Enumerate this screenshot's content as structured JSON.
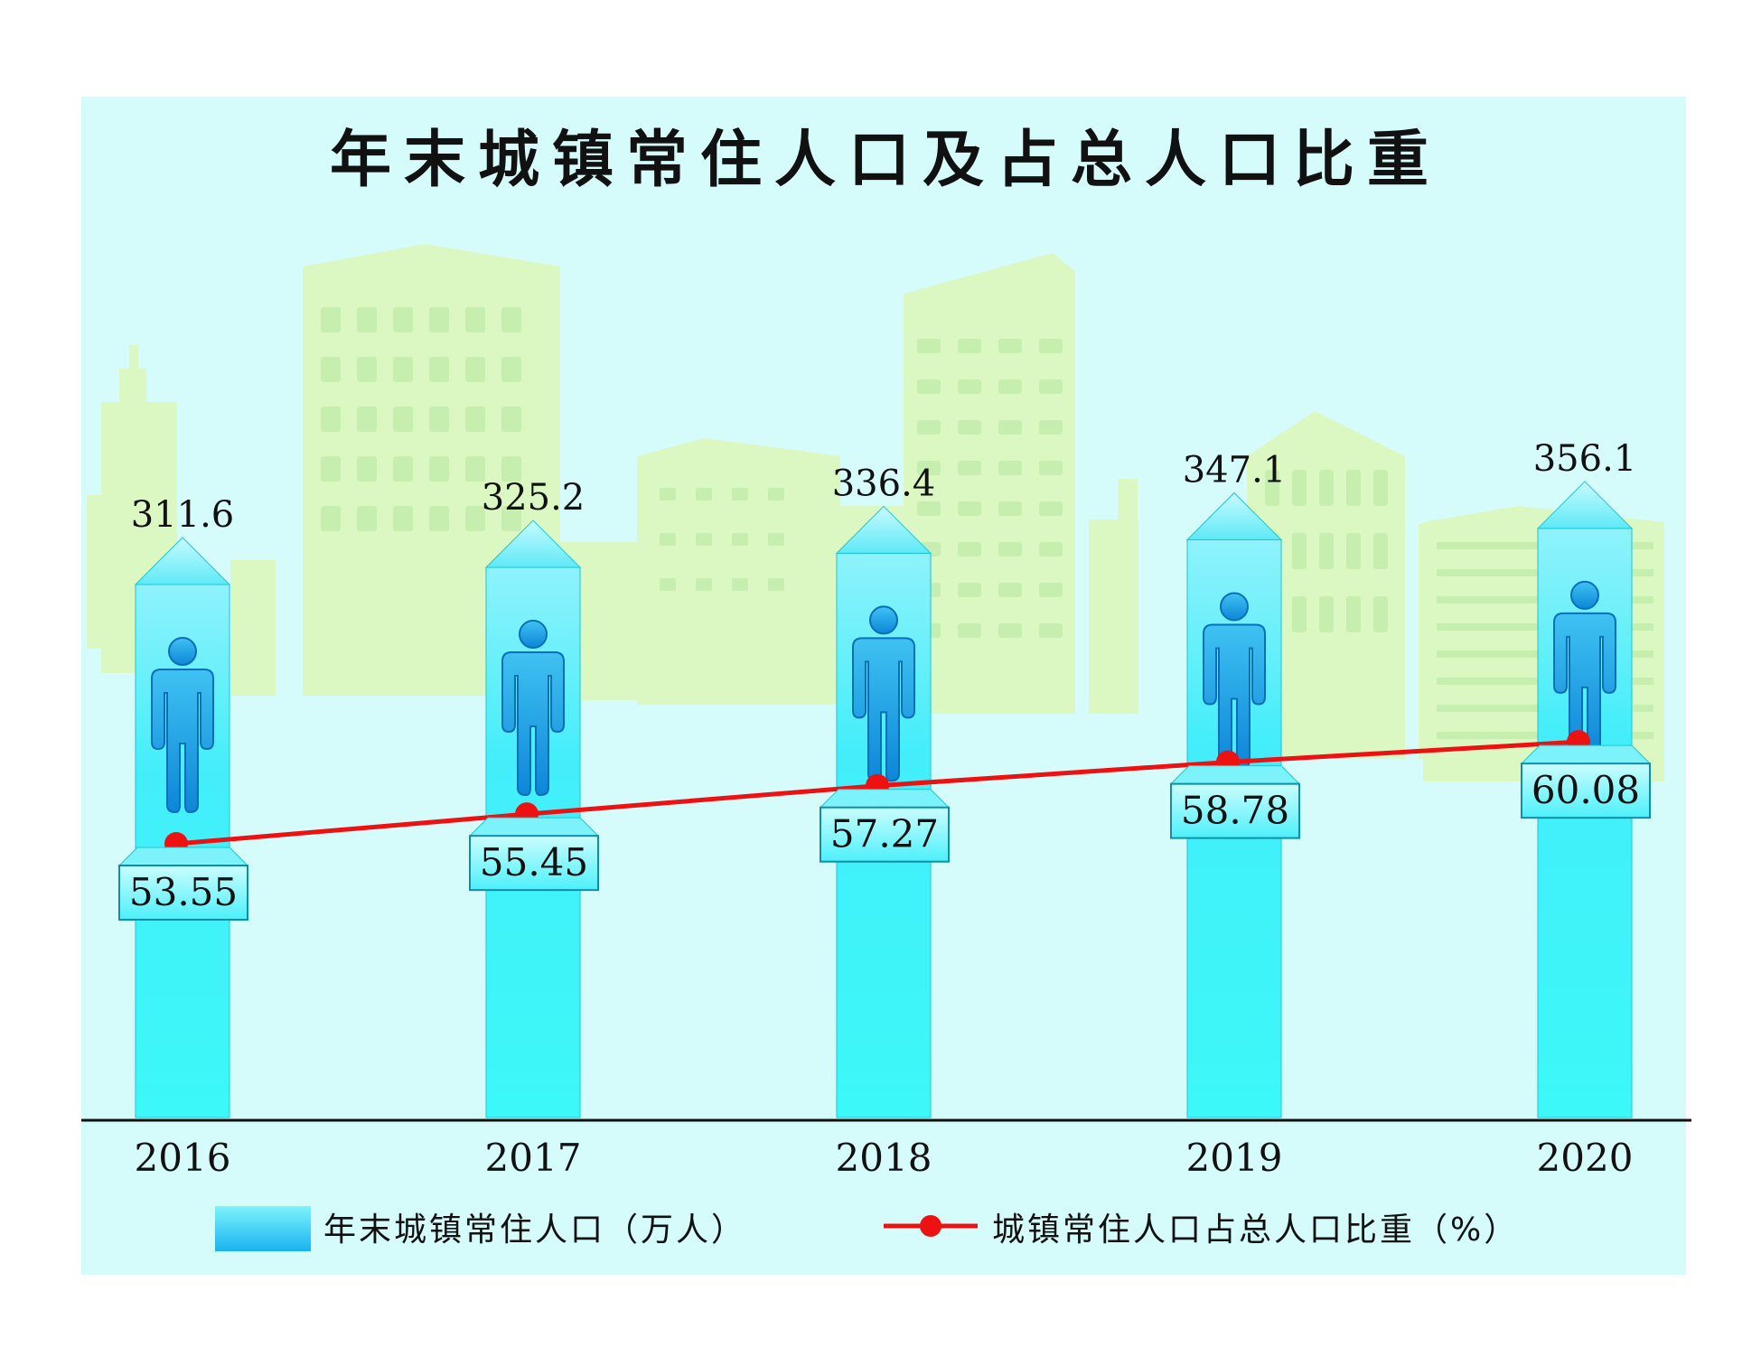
{
  "colors": {
    "panel_bg": "#d6fbfb",
    "building": "#dff9c4",
    "bar_fill": "#3ff7f9",
    "bar_edge": "#17c9dc",
    "person": "#1aa0e6",
    "line": "#ee1111",
    "axis": "#111111"
  },
  "legend": {
    "bar_label": "年末城镇常住人口（万人）",
    "line_label": "城镇常住人口占总人口比重（%）"
  },
  "chart_data": {
    "type": "bar",
    "title": "年末城镇常住人口及占总人口比重",
    "categories": [
      "2016",
      "2017",
      "2018",
      "2019",
      "2020"
    ],
    "series": [
      {
        "name": "年末城镇常住人口（万人）",
        "type": "bar",
        "values": [
          311.6,
          325.2,
          336.4,
          347.1,
          356.1
        ],
        "labels": [
          "311.6",
          "325.2",
          "336.4",
          "347.1",
          "356.1"
        ]
      },
      {
        "name": "城镇常住人口占总人口比重（%）",
        "type": "line",
        "values": [
          53.55,
          55.45,
          57.27,
          58.78,
          60.08
        ],
        "labels": [
          "53.55",
          "55.45",
          "57.27",
          "58.78",
          "60.08"
        ]
      }
    ],
    "grid": false,
    "legend_position": "bottom"
  }
}
